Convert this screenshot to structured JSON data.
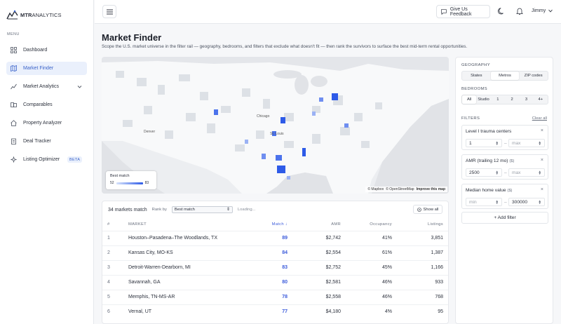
{
  "brand": {
    "name": "MTR ANALYTICS",
    "name_a": "MTR",
    "name_b": "ANALYTICS"
  },
  "sidebar": {
    "menu_label": "MENU",
    "items": [
      {
        "label": "Dashboard",
        "icon": "dashboard-grid-icon"
      },
      {
        "label": "Market Finder",
        "icon": "map-icon",
        "active": true
      },
      {
        "label": "Market Analytics",
        "icon": "chart-icon",
        "expandable": true
      },
      {
        "label": "Comparables",
        "icon": "comparables-icon"
      },
      {
        "label": "Property Analyzer",
        "icon": "house-icon"
      },
      {
        "label": "Deal Tracker",
        "icon": "clipboard-icon"
      },
      {
        "label": "Listing Optimizer",
        "icon": "sparkle-icon",
        "badge": "BETA"
      }
    ]
  },
  "topbar": {
    "feedback_label": "Give Us Feedback",
    "user_name": "Jimmy"
  },
  "page": {
    "title": "Market Finder",
    "subtitle": "Scope the U.S. market universe in the filter rail — geography, bedrooms, and filters that exclude what doesn't fit — then rank the survivors to surface the best mid-term rental opportunities."
  },
  "map": {
    "legend_title": "Best match",
    "legend_min": "52",
    "legend_max": "83",
    "attribution_1": "© Mapbox",
    "attribution_2": "© OpenStreetMap",
    "attribution_3": "Improve this map",
    "labels": [
      "Chicago",
      "St. Louis",
      "Denver"
    ]
  },
  "table": {
    "count_label": "34 markets match",
    "rank_by_label": "Rank by",
    "rank_by_value": "Best match",
    "loading_label": "Loading...",
    "show_all_label": "Show all",
    "headers": {
      "idx": "#",
      "market": "MARKET",
      "match": "Match ↓",
      "amr": "AMR",
      "occupancy": "Occupancy",
      "listings": "Listings"
    },
    "rows": [
      {
        "idx": "1",
        "market": "Houston–Pasadena–The Woodlands, TX",
        "match": "89",
        "amr": "$2,742",
        "occupancy": "41%",
        "listings": "3,851"
      },
      {
        "idx": "2",
        "market": "Kansas City, MO-KS",
        "match": "84",
        "amr": "$2,554",
        "occupancy": "61%",
        "listings": "1,387"
      },
      {
        "idx": "3",
        "market": "Detroit-Warren-Dearborn, MI",
        "match": "83",
        "amr": "$2,752",
        "occupancy": "45%",
        "listings": "1,166"
      },
      {
        "idx": "4",
        "market": "Savannah, GA",
        "match": "80",
        "amr": "$2,581",
        "occupancy": "46%",
        "listings": "933"
      },
      {
        "idx": "5",
        "market": "Memphis, TN-MS-AR",
        "match": "78",
        "amr": "$2,558",
        "occupancy": "46%",
        "listings": "768"
      },
      {
        "idx": "6",
        "market": "Vernal, UT",
        "match": "77",
        "amr": "$4,180",
        "occupancy": "4%",
        "listings": "95"
      }
    ]
  },
  "filters": {
    "geography_label": "GEOGRAPHY",
    "geography_options": [
      "States",
      "Metros",
      "ZIP codes"
    ],
    "geography_selected": "Metros",
    "bedrooms_label": "BEDROOMS",
    "bedroom_options": [
      "All",
      "Studio",
      "1",
      "2",
      "3",
      "4+"
    ],
    "bedrooms_selected": "All",
    "filters_label": "FILTERS",
    "clear_all": "Clear all",
    "items": [
      {
        "name": "Level I trauma centers",
        "unit": "",
        "min": "1",
        "max": "max",
        "min_placeholder": false,
        "max_placeholder": true
      },
      {
        "name": "AMR (trailing 12 mo)",
        "unit": "($)",
        "min": "2500",
        "max": "max",
        "min_placeholder": false,
        "max_placeholder": true
      },
      {
        "name": "Median home value",
        "unit": "($)",
        "min": "min",
        "max": "300000",
        "min_placeholder": true,
        "max_placeholder": false
      }
    ],
    "range_dash": "–",
    "add_filter": "+ Add filter"
  }
}
